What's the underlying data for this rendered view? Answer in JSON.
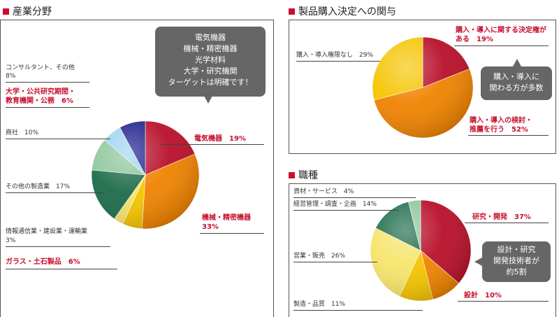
{
  "chart_data": [
    {
      "type": "pie",
      "title": "産業分野",
      "categories": [
        "電気機器",
        "機械・精密機器",
        "ガラス・土石製品",
        "情報通信業・建設業・運輸業",
        "その他の製造業",
        "商社",
        "大学・公共研究期間・教育機関・公務",
        "コンサルタント、その他"
      ],
      "values": [
        19,
        33,
        6,
        3,
        17,
        10,
        6,
        8
      ],
      "colors": [
        "#b8102a",
        "#f08300",
        "#f5c400",
        "#f6e46a",
        "#1d6b4a",
        "#8cc79a",
        "#9ed4f0",
        "#1e1e8c"
      ],
      "labels": {
        "denki": "電気機器　19%",
        "kikai_1": "機械・精密機器",
        "kikai_2": "33%",
        "glass": "ガラス・土石製品　6%",
        "joho_1": "情報通信業・建設業・運輸業",
        "joho_2": "3%",
        "sonota": "その他の製造業　17%",
        "shosha": "商社　10%",
        "daigaku_1": "大学・公共研究期間・",
        "daigaku_2": "教育機関・公務　6%",
        "consul_1": "コンサルタント、その他",
        "consul_2": "8%"
      },
      "callout": [
        "電気機器",
        "機械・精密機器",
        "光学材料",
        "大学・研究機関",
        "ターゲットは明確です！"
      ]
    },
    {
      "type": "pie",
      "title": "製品購入決定への関与",
      "categories": [
        "購入・導入に関する決定権がある",
        "購入・導入の検討・推薦を行う",
        "購入・導入権限なし"
      ],
      "values": [
        19,
        52,
        29
      ],
      "colors": [
        "#b8102a",
        "#f08300",
        "#f5c400"
      ],
      "labels": {
        "kettei_1": "購入・導入に関する決定権が",
        "kettei_2": "ある　19%",
        "kento_1": "購入・導入の検討・",
        "kento_2": "推薦を行う　52%",
        "nashi": "購入・導入権限なし　29%"
      },
      "callout": [
        "購入・導入に",
        "関わる方が多数"
      ]
    },
    {
      "type": "pie",
      "title": "職種",
      "categories": [
        "研究・開発",
        "設計",
        "製造・品質",
        "営業・販売",
        "経営管理・調査・企画",
        "資材・サービス"
      ],
      "values": [
        37,
        10,
        11,
        26,
        14,
        4
      ],
      "colors": [
        "#b8102a",
        "#f08300",
        "#f5c400",
        "#f6e46a",
        "#1d6b4a",
        "#8cc79a"
      ],
      "labels": {
        "kenkyu": "研究・開発　37%",
        "sekkei": "設計　10%",
        "seizo": "製造・品質　11%",
        "eigyo": "営業・販売　26%",
        "keiei": "経営管理・調査・企画　14%",
        "shizai": "資材・サービス　4%"
      },
      "callout": [
        "設計・研究",
        "開発技術者が",
        "約5割"
      ]
    }
  ]
}
